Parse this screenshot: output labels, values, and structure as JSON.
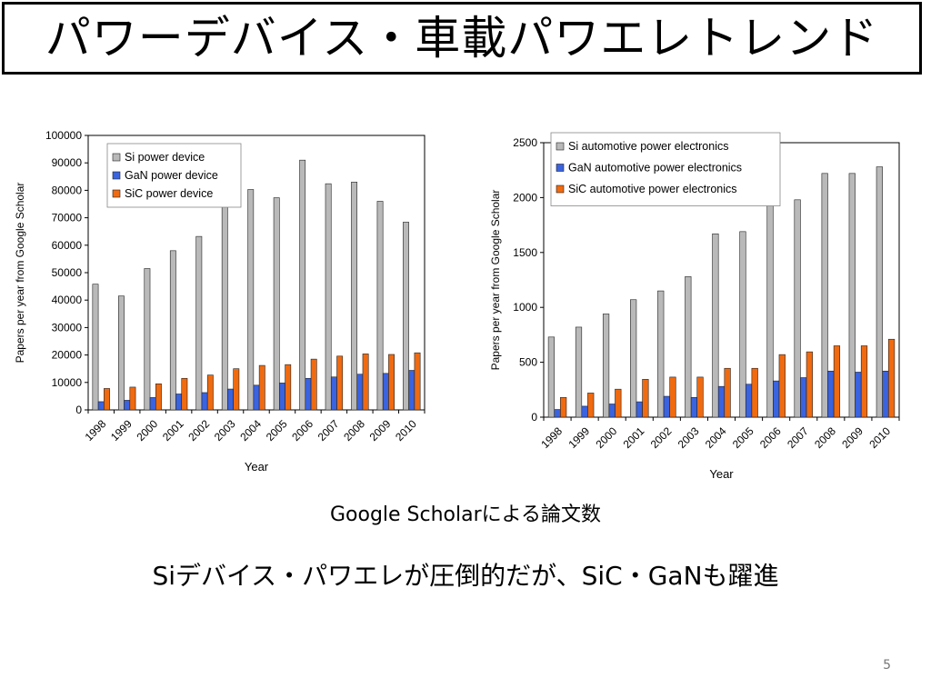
{
  "slide": {
    "title": "パワーデバイス・車載パワエレトレンド",
    "caption": "Google Scholarによる論文数",
    "headline": "Siデバイス・パワエレが圧倒的だが、SiC・GaNも躍進",
    "page_number": "5"
  },
  "colors": {
    "si": "#b9b9b9",
    "gan": "#3a63e0",
    "sic": "#f06a10",
    "axis": "#000000"
  },
  "chart_data": [
    {
      "type": "bar",
      "xlabel": "Year",
      "ylabel": "Papers per year from Google Scholar",
      "ylim": [
        0,
        100000
      ],
      "yticks": [
        0,
        10000,
        20000,
        30000,
        40000,
        50000,
        60000,
        70000,
        80000,
        90000,
        100000
      ],
      "legend_position": "top-left",
      "grid": false,
      "categories": [
        "1998",
        "1999",
        "2000",
        "2001",
        "2002",
        "2003",
        "2004",
        "2005",
        "2006",
        "2007",
        "2008",
        "2009",
        "2010"
      ],
      "series": [
        {
          "name": "Si power device",
          "color_key": "si",
          "values": [
            45800,
            41500,
            51500,
            58000,
            63200,
            74000,
            80300,
            77300,
            91000,
            82400,
            83000,
            76000,
            68400
          ]
        },
        {
          "name": "GaN power device",
          "color_key": "gan",
          "values": [
            3000,
            3500,
            4500,
            5800,
            6300,
            7600,
            9000,
            9800,
            11500,
            12000,
            13000,
            13300,
            14400
          ]
        },
        {
          "name": "SiC power device",
          "color_key": "sic",
          "values": [
            7800,
            8300,
            9500,
            11500,
            12700,
            15000,
            16200,
            16500,
            18500,
            19600,
            20400,
            20200,
            20800
          ]
        }
      ]
    },
    {
      "type": "bar",
      "xlabel": "Year",
      "ylabel": "Papers per year from Google Scholar",
      "ylim": [
        0,
        2500
      ],
      "yticks": [
        0,
        500,
        1000,
        1500,
        2000,
        2500
      ],
      "legend_position": "top-left",
      "grid": false,
      "categories": [
        "1998",
        "1999",
        "2000",
        "2001",
        "2002",
        "2003",
        "2004",
        "2005",
        "2006",
        "2007",
        "2008",
        "2009",
        "2010"
      ],
      "series": [
        {
          "name": "Si automotive power electronics",
          "color_key": "si",
          "values": [
            730,
            820,
            940,
            1070,
            1150,
            1280,
            1670,
            1690,
            1970,
            1980,
            2220,
            2220,
            2280
          ]
        },
        {
          "name": "GaN automotive power electronics",
          "color_key": "gan",
          "values": [
            70,
            100,
            120,
            140,
            190,
            180,
            280,
            300,
            330,
            360,
            420,
            410,
            420
          ]
        },
        {
          "name": "SiC automotive power electronics",
          "color_key": "sic",
          "values": [
            180,
            220,
            255,
            345,
            365,
            365,
            445,
            445,
            570,
            595,
            650,
            650,
            710
          ]
        }
      ]
    }
  ]
}
